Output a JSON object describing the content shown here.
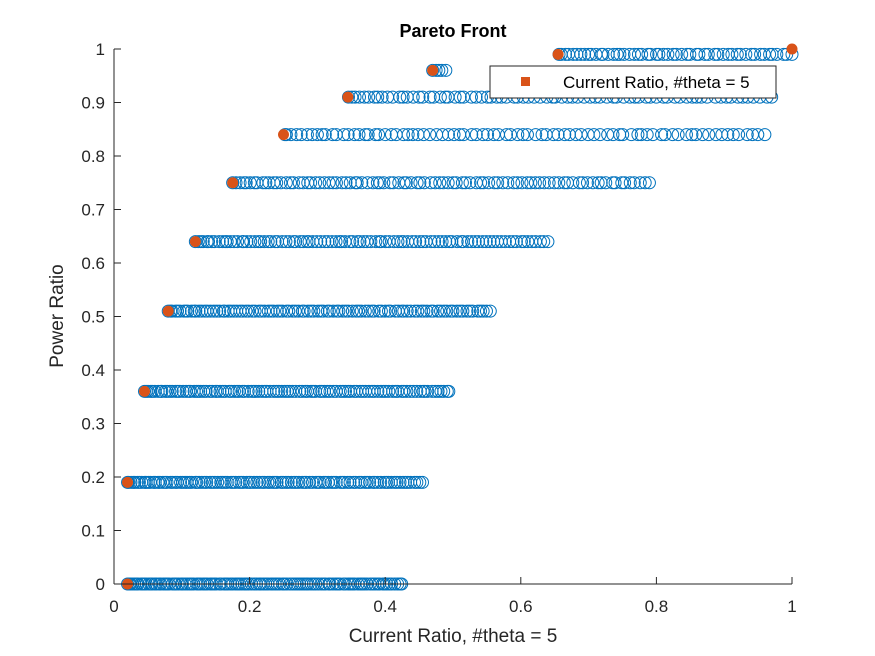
{
  "chart_data": {
    "type": "scatter",
    "title": "Pareto Front",
    "xlabel": "Current Ratio, #theta = 5",
    "ylabel": "Power Ratio",
    "xlim": [
      0,
      1
    ],
    "ylim": [
      0,
      1
    ],
    "xticks": [
      "0",
      "0.2",
      "0.4",
      "0.6",
      "0.8",
      "1"
    ],
    "yticks": [
      "0",
      "0.1",
      "0.2",
      "0.3",
      "0.4",
      "0.5",
      "0.6",
      "0.7",
      "0.8",
      "0.9",
      "1"
    ],
    "grid": false,
    "legend": {
      "placement": "top-right",
      "entries": [
        "Current Ratio, #theta = 5"
      ]
    },
    "series": [
      {
        "marker": "open-circle",
        "color": "#0072BD",
        "rows": [
          {
            "y": 0.0,
            "x_min": 0.02,
            "x_max": 0.425,
            "count": 120
          },
          {
            "y": 0.19,
            "x_min": 0.02,
            "x_max": 0.455,
            "count": 115
          },
          {
            "y": 0.36,
            "x_min": 0.045,
            "x_max": 0.495,
            "count": 110
          },
          {
            "y": 0.51,
            "x_min": 0.08,
            "x_max": 0.555,
            "count": 105
          },
          {
            "y": 0.64,
            "x_min": 0.12,
            "x_max": 0.64,
            "count": 100
          },
          {
            "y": 0.75,
            "x_min": 0.175,
            "x_max": 0.79,
            "count": 95
          },
          {
            "y": 0.84,
            "x_min": 0.25,
            "x_max": 0.96,
            "count": 85
          },
          {
            "y": 0.91,
            "x_min": 0.345,
            "x_max": 0.97,
            "count": 80
          },
          {
            "y": 0.96,
            "x_min": 0.47,
            "x_max": 0.49,
            "count": 5
          },
          {
            "y": 0.99,
            "x_min": 0.655,
            "x_max": 1.0,
            "count": 55
          }
        ]
      },
      {
        "name": "Current Ratio, #theta = 5",
        "marker": "filled-circle",
        "color": "#D95319",
        "points": [
          [
            0.02,
            0.0
          ],
          [
            0.02,
            0.19
          ],
          [
            0.045,
            0.36
          ],
          [
            0.08,
            0.51
          ],
          [
            0.12,
            0.64
          ],
          [
            0.175,
            0.75
          ],
          [
            0.25,
            0.84
          ],
          [
            0.345,
            0.91
          ],
          [
            0.47,
            0.96
          ],
          [
            0.655,
            0.99
          ],
          [
            1.0,
            1.0
          ]
        ]
      }
    ]
  }
}
